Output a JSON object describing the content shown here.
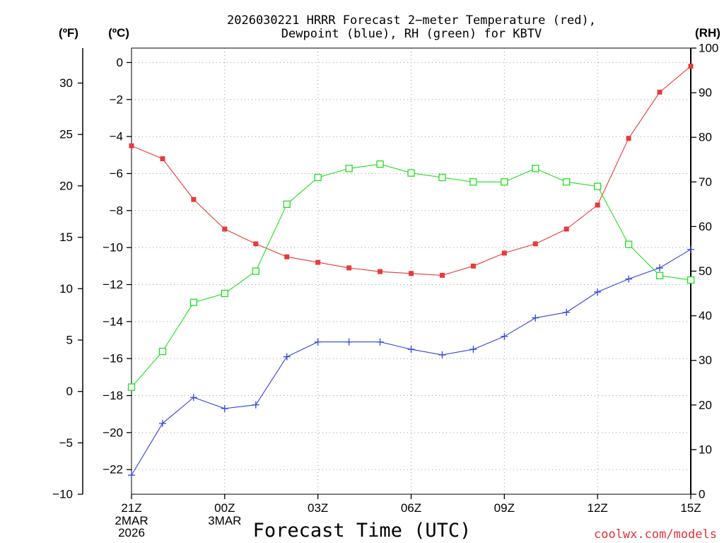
{
  "chart_data": {
    "type": "line",
    "title": {
      "line1": "2026030221 HRRR Forecast 2−meter Temperature (red),",
      "line2": "Dewpoint (blue), RH (green) for KBTV"
    },
    "xlabel": "Forecast Time (UTC)",
    "xlim": [
      0,
      18
    ],
    "x_hours": [
      0,
      1,
      2,
      3,
      4,
      5,
      6,
      7,
      8,
      9,
      10,
      11,
      12,
      13,
      14,
      15,
      16,
      17,
      18
    ],
    "x_ticks": [
      {
        "hour": 0,
        "label": "21Z",
        "date": "2MAR",
        "year": "2026"
      },
      {
        "hour": 3,
        "label": "00Z",
        "date": "3MAR"
      },
      {
        "hour": 6,
        "label": "03Z"
      },
      {
        "hour": 9,
        "label": "06Z"
      },
      {
        "hour": 12,
        "label": "09Z"
      },
      {
        "hour": 15,
        "label": "12Z"
      },
      {
        "hour": 18,
        "label": "15Z"
      }
    ],
    "y_celsius": {
      "label": "(ºC)",
      "lim": [
        -23.33,
        0.78
      ],
      "ticks": [
        "0",
        "−2",
        "−4",
        "−6",
        "−8",
        "−10",
        "−12",
        "−14",
        "−16",
        "−18",
        "−20",
        "−22"
      ]
    },
    "y_fahrenheit": {
      "label": "(ºF)",
      "ticks": [
        "−10",
        "−5",
        "0",
        "5",
        "10",
        "15",
        "20",
        "25",
        "30"
      ]
    },
    "y_rh": {
      "label": "(RH)",
      "lim": [
        0,
        100
      ],
      "ticks": [
        "0",
        "10",
        "20",
        "30",
        "40",
        "50",
        "60",
        "70",
        "80",
        "90",
        "100"
      ]
    },
    "grid": true,
    "series": {
      "temperature_c": {
        "color": "#e83a3a",
        "values": [
          -4.5,
          -5.2,
          -7.4,
          -9.0,
          -9.8,
          -10.5,
          -10.8,
          -11.1,
          -11.3,
          -11.4,
          -11.5,
          -11.0,
          -10.3,
          -9.8,
          -9.0,
          -7.7,
          -4.1,
          -1.6,
          -0.2
        ]
      },
      "dewpoint_c": {
        "color": "#3344dd",
        "values": [
          -22.3,
          -19.5,
          -18.1,
          -18.7,
          -18.5,
          -15.9,
          -15.1,
          -15.1,
          -15.1,
          -15.5,
          -15.8,
          -15.5,
          -14.8,
          -13.8,
          -13.5,
          -12.4,
          -11.7,
          -11.1,
          -10.1
        ]
      },
      "rh_percent": {
        "color": "#22dd22",
        "values": [
          24,
          32,
          43,
          45,
          50,
          65,
          71,
          73,
          74,
          72,
          71,
          70,
          70,
          73,
          70,
          69,
          56,
          49,
          48
        ]
      }
    }
  },
  "credit": {
    "text": "coolwx.com/models",
    "color": "#e0303c"
  }
}
